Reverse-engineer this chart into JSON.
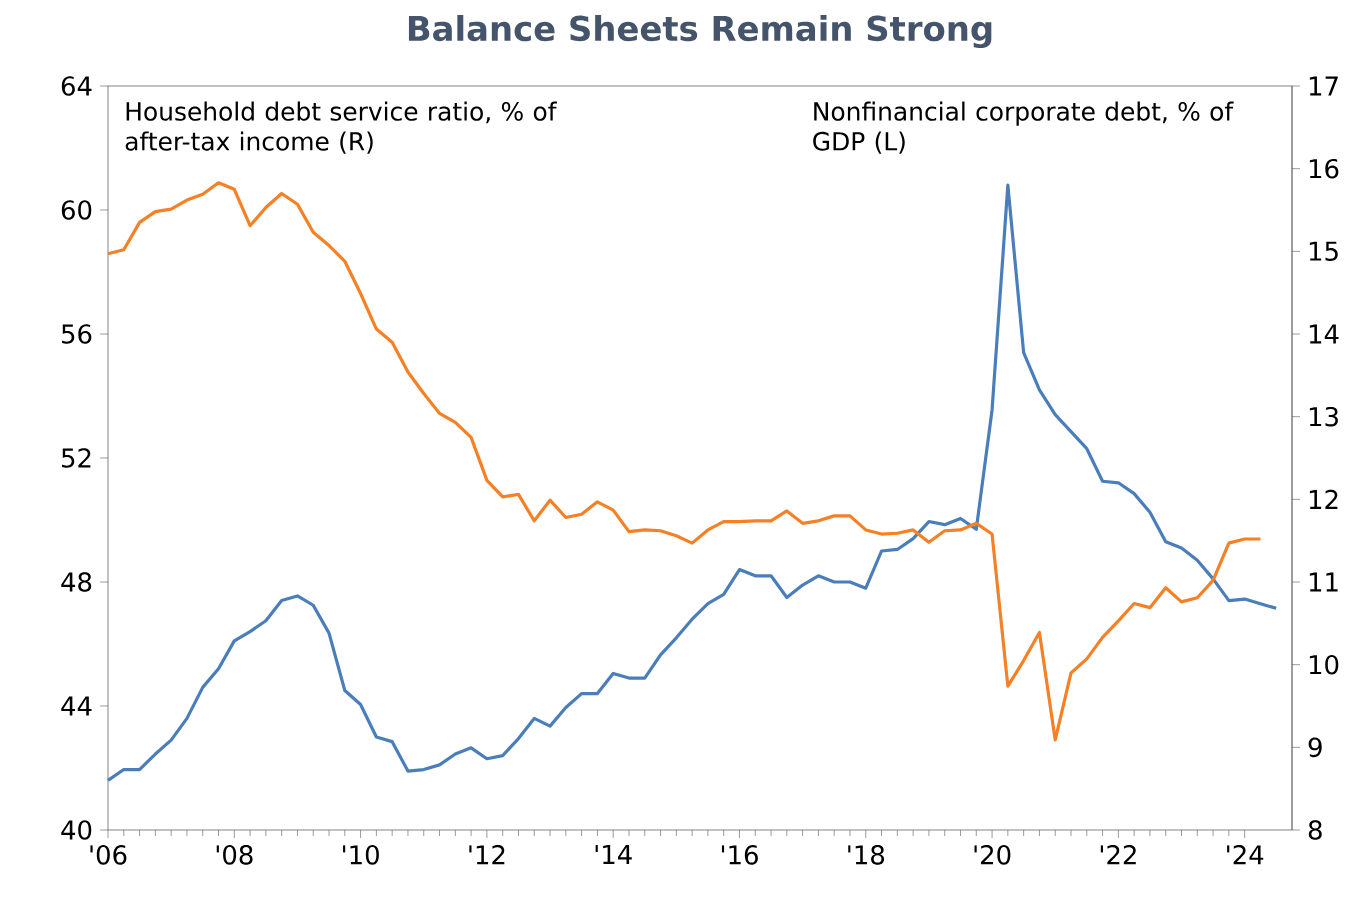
{
  "chart_data": {
    "type": "line",
    "title": "Balance Sheets Remain Strong",
    "annotations": [
      "Household debt service ratio, % of after-tax income (R)",
      "Nonfinancial corporate debt, % of GDP (L)"
    ],
    "x": [
      2006,
      2006.25,
      2006.5,
      2006.75,
      2007,
      2007.25,
      2007.5,
      2007.75,
      2008,
      2008.25,
      2008.5,
      2008.75,
      2009,
      2009.25,
      2009.5,
      2009.75,
      2010,
      2010.25,
      2010.5,
      2010.75,
      2011,
      2011.25,
      2011.5,
      2011.75,
      2012,
      2012.25,
      2012.5,
      2012.75,
      2013,
      2013.25,
      2013.5,
      2013.75,
      2014,
      2014.25,
      2014.5,
      2014.75,
      2015,
      2015.25,
      2015.5,
      2015.75,
      2016,
      2016.25,
      2016.5,
      2016.75,
      2017,
      2017.25,
      2017.5,
      2017.75,
      2018,
      2018.25,
      2018.5,
      2018.75,
      2019,
      2019.25,
      2019.5,
      2019.75,
      2020,
      2020.25,
      2020.5,
      2020.75,
      2021,
      2021.25,
      2021.5,
      2021.75,
      2022,
      2022.25,
      2022.5,
      2022.75,
      2023,
      2023.25,
      2023.5,
      2023.75,
      2024,
      2024.25,
      2024.5
    ],
    "series": [
      {
        "color": "#4a7ebb",
        "axis": "y",
        "values": [
          41.6,
          41.95,
          41.95,
          42.45,
          42.9,
          43.6,
          44.6,
          45.2,
          46.1,
          46.4,
          46.75,
          47.4,
          47.55,
          47.25,
          46.35,
          44.5,
          44.05,
          43.0,
          42.85,
          41.9,
          41.95,
          42.1,
          42.45,
          42.65,
          42.3,
          42.4,
          42.95,
          43.6,
          43.35,
          43.95,
          44.4,
          44.4,
          45.05,
          44.9,
          44.9,
          45.65,
          46.2,
          46.8,
          47.3,
          47.6,
          48.4,
          48.2,
          48.2,
          47.5,
          47.9,
          48.2,
          48.0,
          48.0,
          47.8,
          49.0,
          49.05,
          49.4,
          49.95,
          49.85,
          50.05,
          49.7,
          53.55,
          60.8,
          55.4,
          54.2,
          53.4,
          52.85,
          52.3,
          51.25,
          51.2,
          50.85,
          50.25,
          49.3,
          49.1,
          48.7,
          48.1,
          47.4,
          47.45,
          47.3,
          47.15
        ]
      },
      {
        "color": "#f58025",
        "axis": "y2",
        "values": [
          14.97,
          15.02,
          15.35,
          15.48,
          15.51,
          15.62,
          15.69,
          15.83,
          15.75,
          15.31,
          15.53,
          15.7,
          15.57,
          15.23,
          15.07,
          14.88,
          14.49,
          14.06,
          13.9,
          13.54,
          13.28,
          13.04,
          12.93,
          12.75,
          12.23,
          12.03,
          12.06,
          11.74,
          11.99,
          11.78,
          11.82,
          11.97,
          11.87,
          11.61,
          11.63,
          11.62,
          11.56,
          11.47,
          11.63,
          11.73,
          11.73,
          11.74,
          11.74,
          11.86,
          11.71,
          11.74,
          11.8,
          11.8,
          11.63,
          11.58,
          11.59,
          11.63,
          11.48,
          11.62,
          11.63,
          11.71,
          11.58,
          9.74,
          10.05,
          10.39,
          9.09,
          9.9,
          10.07,
          10.33,
          10.53,
          10.74,
          10.69,
          10.93,
          10.76,
          10.81,
          11.02,
          11.47,
          11.52,
          11.52,
          null
        ]
      }
    ],
    "xlim": [
      2006,
      2024.75
    ],
    "ylim": [
      40,
      64
    ],
    "y2lim": [
      8,
      17
    ],
    "xticks": [
      {
        "value": 2006,
        "label": "'06"
      },
      {
        "value": 2008,
        "label": "'08"
      },
      {
        "value": 2010,
        "label": "'10"
      },
      {
        "value": 2012,
        "label": "'12"
      },
      {
        "value": 2014,
        "label": "'14"
      },
      {
        "value": 2016,
        "label": "'16"
      },
      {
        "value": 2018,
        "label": "'18"
      },
      {
        "value": 2020,
        "label": "'20"
      },
      {
        "value": 2022,
        "label": "'22"
      },
      {
        "value": 2024,
        "label": "'24"
      }
    ],
    "yticks": [
      40,
      44,
      48,
      52,
      56,
      60,
      64
    ],
    "y2ticks": [
      8,
      9,
      10,
      11,
      12,
      13,
      14,
      15,
      16,
      17
    ],
    "marker": "none",
    "line_style": "solid"
  }
}
